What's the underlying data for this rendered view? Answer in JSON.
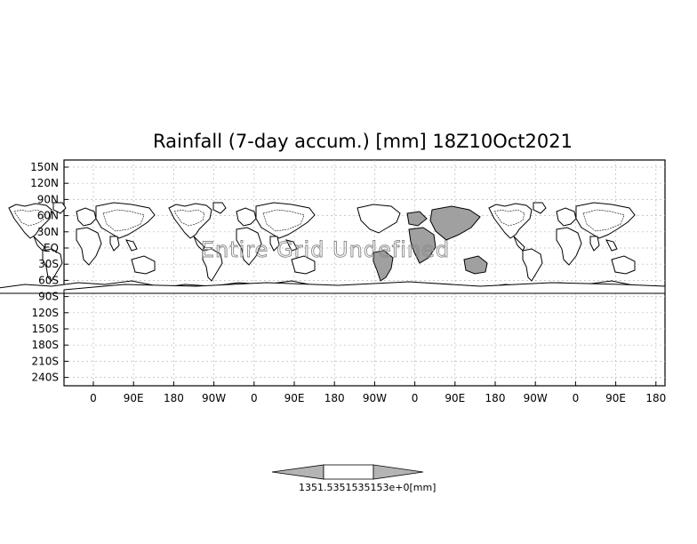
{
  "title": "Rainfall (7-day accum.) [mm] 18Z10Oct2021",
  "watermark": "Entire Grid Undefined",
  "y_ticks": [
    "150N",
    "120N",
    "90N",
    "60N",
    "30N",
    "EQ",
    "30S",
    "60S",
    "90S",
    "120S",
    "150S",
    "180S",
    "210S",
    "240S"
  ],
  "x_ticks": [
    "0",
    "90E",
    "180",
    "90W",
    "0",
    "90E",
    "180",
    "90W",
    "0",
    "90E",
    "180",
    "90W",
    "0",
    "90E",
    "180"
  ],
  "colorbar": {
    "label": "1351.5351535153e+0[mm]",
    "left_value": "1351.5",
    "right_value": "351535153e+0[mm]",
    "colors": {
      "left_arrow": "#b4b4b4",
      "center": "#ffffff",
      "right_arrow": "#b4b4b4"
    }
  },
  "colors": {
    "land_shaded": "#a0a0a0",
    "grid": "#b8b8b8",
    "frame": "#000000"
  }
}
